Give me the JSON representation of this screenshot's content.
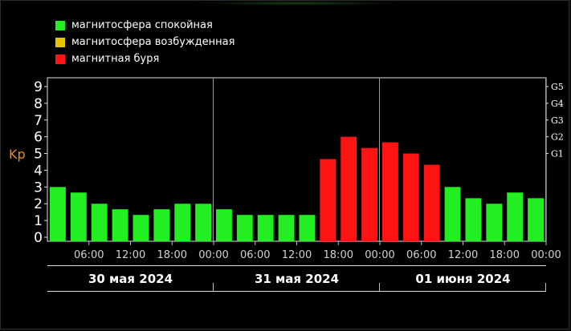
{
  "legend": [
    {
      "label": "магнитосфера спокойная",
      "color": "#22ee22"
    },
    {
      "label": "магнитосфера возбужденная",
      "color": "#e8c400"
    },
    {
      "label": "магнитная буря",
      "color": "#ff1414"
    }
  ],
  "chart_data": {
    "type": "bar",
    "ylabel": "Kp",
    "ylim": [
      0,
      9
    ],
    "y_ticks": [
      "0",
      "1",
      "2",
      "3",
      "4",
      "5",
      "6",
      "7",
      "8",
      "9"
    ],
    "g_scale": [
      {
        "label": "G1",
        "kp": 5
      },
      {
        "label": "G2",
        "kp": 6
      },
      {
        "label": "G3",
        "kp": 7
      },
      {
        "label": "G4",
        "kp": 8
      },
      {
        "label": "G5",
        "kp": 9
      }
    ],
    "time_ticks": [
      "06:00",
      "12:00",
      "18:00",
      "00:00",
      "06:00",
      "12:00",
      "18:00",
      "00:00",
      "06:00",
      "12:00",
      "18:00",
      "00:00"
    ],
    "days": [
      "30 мая 2024",
      "31 мая 2024",
      "01 июня 2024"
    ],
    "bar_levels": {
      "quiet": "#22ee22",
      "storm": "#ff1414"
    },
    "values": [
      3.0,
      2.67,
      2.0,
      1.67,
      1.33,
      1.67,
      2.0,
      2.0,
      1.67,
      1.33,
      1.33,
      1.33,
      1.33,
      4.67,
      6.0,
      5.33,
      5.67,
      5.0,
      4.33,
      3.0,
      2.33,
      2.0,
      2.67,
      2.33
    ],
    "levels": [
      "quiet",
      "quiet",
      "quiet",
      "quiet",
      "quiet",
      "quiet",
      "quiet",
      "quiet",
      "quiet",
      "quiet",
      "quiet",
      "quiet",
      "quiet",
      "storm",
      "storm",
      "storm",
      "storm",
      "storm",
      "storm",
      "quiet",
      "quiet",
      "quiet",
      "quiet",
      "quiet"
    ]
  }
}
